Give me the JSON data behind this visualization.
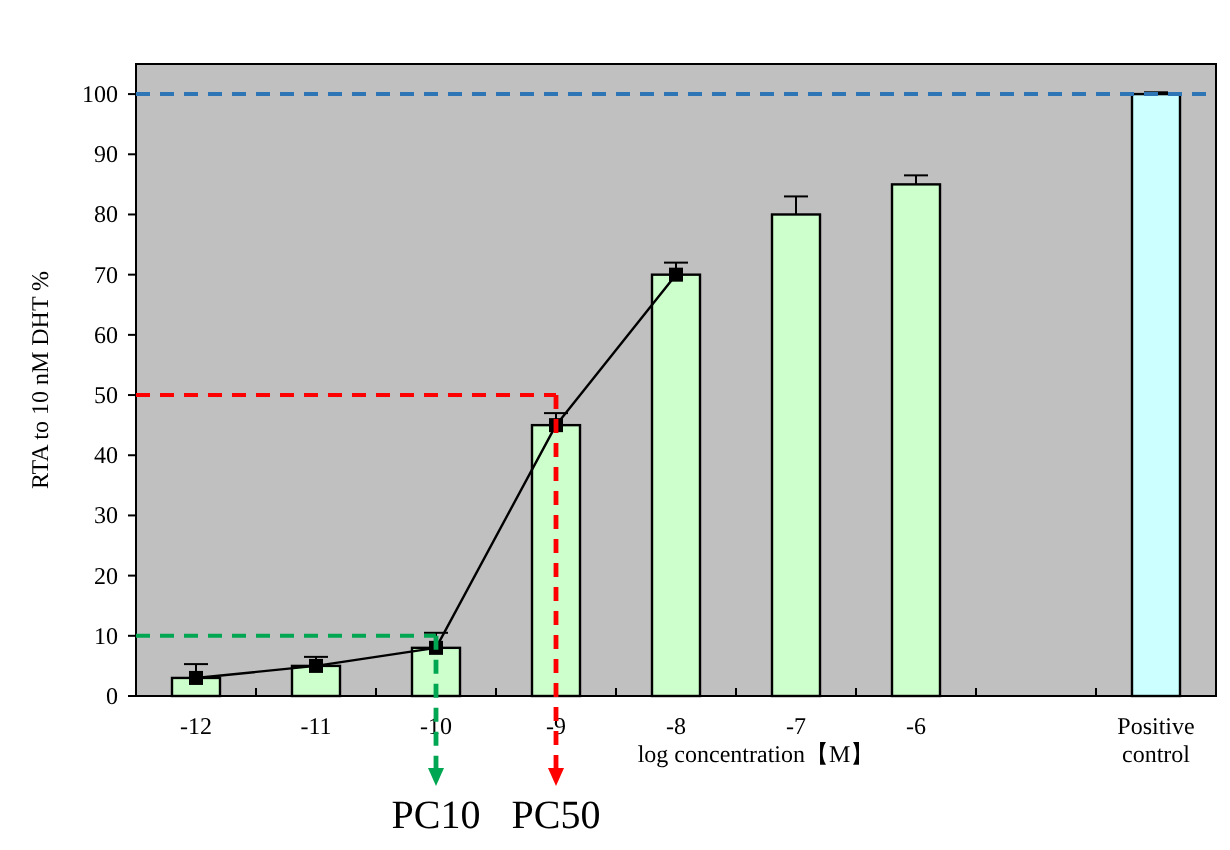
{
  "chart_data": {
    "type": "bar",
    "ylabel": "RTA to 10 nM DHT %",
    "xlabel": "log concentration【M】",
    "categories": [
      "-12",
      "-11",
      "-10",
      "-9",
      "-8",
      "-7",
      "-6",
      null,
      "Positive control"
    ],
    "ylim": [
      0,
      105
    ],
    "yticks": [
      0,
      10,
      20,
      30,
      40,
      50,
      60,
      70,
      80,
      90,
      100
    ],
    "grid": false,
    "series": [
      {
        "values": [
          3,
          5,
          8,
          45,
          70,
          80,
          85,
          null,
          100
        ],
        "colors": [
          "#ccffcc",
          "#ccffcc",
          "#ccffcc",
          "#ccffcc",
          "#ccffcc",
          "#ccffcc",
          "#ccffcc",
          null,
          "#ccffff"
        ],
        "errors": [
          [
            3,
            5.3
          ],
          [
            5,
            6.5
          ],
          [
            8,
            10.5
          ],
          [
            45,
            47
          ],
          [
            70,
            72
          ],
          [
            80,
            83
          ],
          [
            85,
            86.5
          ],
          null,
          [
            100,
            100.3
          ]
        ]
      },
      {
        "type": "line",
        "color": "#000000",
        "marker": "square",
        "line_style": "solid",
        "values": [
          3,
          5,
          8,
          45,
          70,
          null,
          null,
          null,
          null
        ]
      }
    ],
    "ref_lines": [
      {
        "axis": "y",
        "value": 100,
        "color": "#2e75b6",
        "line_style": "dashed"
      },
      {
        "axis": "y",
        "value": 10,
        "color": "#00a651",
        "line_style": "dashed"
      },
      {
        "axis": "y",
        "value": 50,
        "color": "#ff0000",
        "line_style": "dashed"
      }
    ],
    "annotations": [
      {
        "text": "PC10",
        "x": "-10",
        "y": 10
      },
      {
        "text": "PC50",
        "x": "-9",
        "y": 50
      }
    ]
  }
}
